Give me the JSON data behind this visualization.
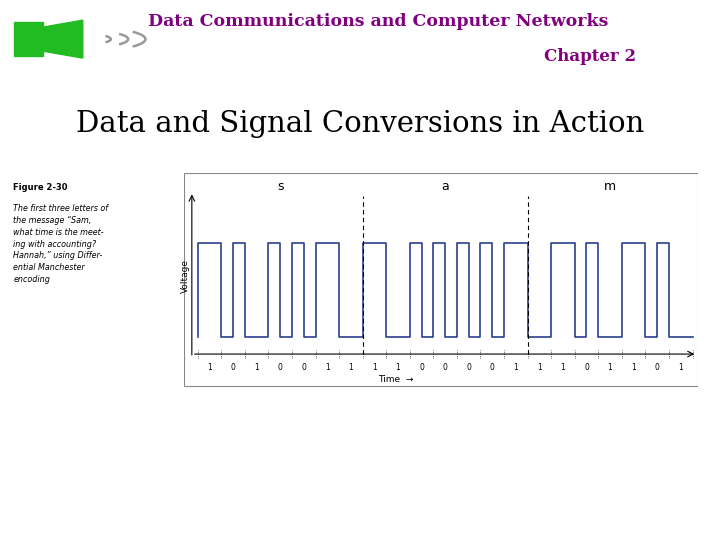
{
  "header_title": "Data Communications and Computer Networks",
  "header_subtitle": "Chapter 2",
  "header_title_color": "#800080",
  "header_subtitle_color": "#800080",
  "header_line_color": "#33cc33",
  "slide_title": "Data and Signal Conversions in Action",
  "slide_title_color": "#000000",
  "background_color": "#ffffff",
  "figure_label": "Figure 2-30",
  "figure_caption": "The first three letters of\nthe message “Sam,\nwhat time is the meet-\ning with accounting?\nHannah,” using Differ-\nential Manchester\nencoding",
  "signal_bits": [
    1,
    0,
    1,
    0,
    0,
    1,
    1,
    1,
    1,
    0,
    0,
    0,
    0,
    1,
    1,
    1,
    0,
    1,
    1,
    0,
    1
  ],
  "letter_labels": [
    "s",
    "a",
    "m"
  ],
  "letter_label_bit_centers": [
    3.5,
    10.5,
    17.5
  ],
  "letter_divider_bits": [
    7,
    14
  ],
  "signal_color": "#2b3f8c",
  "waveform_ylabel": "Voltage",
  "waveform_xlabel": "Time",
  "speaker_green": "#22bb22",
  "speaker_grey": "#999999"
}
